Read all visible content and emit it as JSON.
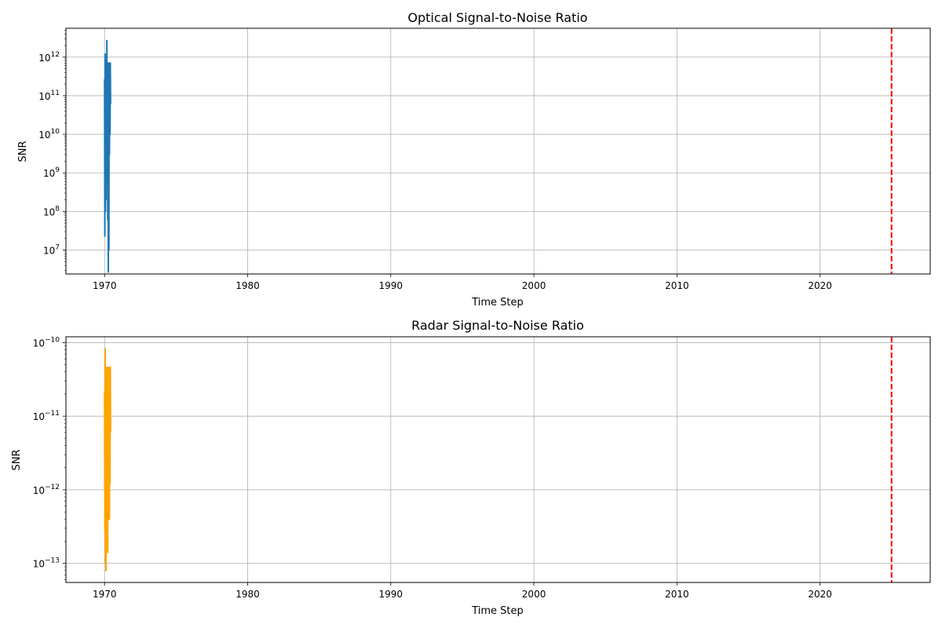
{
  "chart_data": [
    {
      "type": "line",
      "title": "Optical Signal-to-Noise Ratio",
      "xlabel": "Time Step",
      "ylabel": "SNR",
      "yscale": "log",
      "xlim": [
        1967.3,
        2027.7
      ],
      "ylim": [
        2400000.0,
        5600000000000.0
      ],
      "grid": true,
      "x_ticks": [
        1970,
        1980,
        1990,
        2000,
        2010,
        2020
      ],
      "y_ticks": [
        {
          "value": 10000000.0,
          "label": "10^7"
        },
        {
          "value": 100000000.0,
          "label": "10^8"
        },
        {
          "value": 1000000000.0,
          "label": "10^9"
        },
        {
          "value": 10000000000.0,
          "label": "10^10"
        },
        {
          "value": 100000000000.0,
          "label": "10^11"
        },
        {
          "value": 1000000000000.0,
          "label": "10^12"
        }
      ],
      "series": [
        {
          "color": "#1f77b4",
          "x": [
            1970.0,
            1970.02,
            1970.04,
            1970.06,
            1970.08,
            1970.1,
            1970.12,
            1970.14,
            1970.16,
            1970.18,
            1970.2,
            1970.22,
            1970.24,
            1970.26,
            1970.28,
            1970.3,
            1970.32,
            1970.34,
            1970.36,
            1970.38,
            1970.4,
            1970.42
          ],
          "y": [
            270000000000.0,
            23000000.0,
            1200000000000.0,
            100000000.0,
            500000000000.0,
            200000000.0,
            800000000000.0,
            1000000000.0,
            2700000000000.0,
            500000000.0,
            700000000000.0,
            60000000.0,
            600000000000.0,
            2700000.0,
            700000000000.0,
            10000000.0,
            700000000000.0,
            3000000000.0,
            650000000000.0,
            10000000000.0,
            700000000000.0,
            60000000000.0
          ]
        }
      ],
      "vline": {
        "x": 2025,
        "color": "#ff0000",
        "style": "dashed"
      }
    },
    {
      "type": "line",
      "title": "Radar Signal-to-Noise Ratio",
      "xlabel": "Time Step",
      "ylabel": "SNR",
      "yscale": "log",
      "xlim": [
        1967.3,
        2027.7
      ],
      "ylim": [
        5.5e-14,
        1.2e-10
      ],
      "grid": true,
      "x_ticks": [
        1970,
        1980,
        1990,
        2000,
        2010,
        2020
      ],
      "y_ticks": [
        {
          "value": 1e-13,
          "label": "10^−13"
        },
        {
          "value": 1e-12,
          "label": "10^−12"
        },
        {
          "value": 1e-11,
          "label": "10^−11"
        },
        {
          "value": 1e-10,
          "label": "10^−10"
        }
      ],
      "series": [
        {
          "color": "#ffa500",
          "x": [
            1970.0,
            1970.02,
            1970.04,
            1970.06,
            1970.08,
            1970.1,
            1970.12,
            1970.14,
            1970.16,
            1970.18,
            1970.2,
            1970.22,
            1970.24,
            1970.26,
            1970.28,
            1970.3,
            1970.32,
            1970.34,
            1970.36,
            1970.38,
            1970.4,
            1970.42
          ],
          "y": [
            2.2e-11,
            2.8e-13,
            8.2e-11,
            1e-13,
            3e-11,
            8e-14,
            4.5e-11,
            2e-13,
            4.6e-11,
            3e-13,
            4.5e-11,
            1.4e-13,
            4.6e-11,
            4e-13,
            4.6e-11,
            1e-12,
            4.6e-11,
            4e-13,
            4.6e-11,
            1.2e-12,
            4.6e-11,
            6e-12
          ]
        }
      ],
      "vline": {
        "x": 2025,
        "color": "#ff0000",
        "style": "dashed"
      }
    }
  ]
}
